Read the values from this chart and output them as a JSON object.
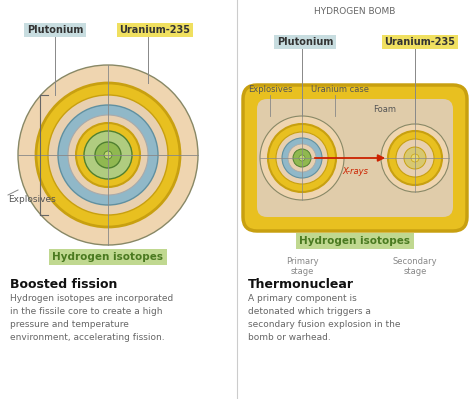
{
  "bg_color": "#ffffff",
  "title_right": "HYDROGEN BOMB",
  "left_labels": {
    "plutonium": "Plutonium",
    "uranium": "Uranium-235",
    "explosives": "Explosives",
    "hydrogen": "Hydrogen isotopes"
  },
  "right_labels": {
    "plutonium": "Plutonium",
    "uranium": "Uranium-235",
    "explosives": "Explosives",
    "uranium_case": "Uranium case",
    "foam": "Foam",
    "xrays": "X-rays",
    "hydrogen": "Hydrogen isotopes",
    "primary": "Primary\nstage",
    "secondary": "Secondary\nstage"
  },
  "bottom_left_title": "Boosted fission",
  "bottom_left_text": "Hydrogen isotopes are incorporated\nin the fissile core to create a high\npressure and temperature\nenvironment, accelerating fission.",
  "bottom_right_title": "Thermonuclear",
  "bottom_right_text": "A primary component is\ndetonated which triggers a\nsecondary fusion explosion in the\nbomb or warhead.",
  "colors": {
    "outer_peach": "#efd5b0",
    "yellow_thick": "#e8c020",
    "yellow_edge": "#c8a010",
    "blue_ring": "#90b8c8",
    "blue_edge": "#6090a0",
    "inner_peach": "#e8d0b0",
    "green_fill": "#b0cc80",
    "green_core": "#90b850",
    "core_dot": "#c0d870",
    "core_edge": "#508030",
    "foam_bg": "#e0ccaa",
    "label_green_bg": "#c0d890",
    "label_green_text": "#4a7a20",
    "label_blue_bg": "#c8dde0",
    "label_yellow_bg": "#f0e060",
    "label_text": "#333333",
    "line_color": "#888888",
    "text_color": "#555555",
    "arrow_red": "#cc2200"
  }
}
